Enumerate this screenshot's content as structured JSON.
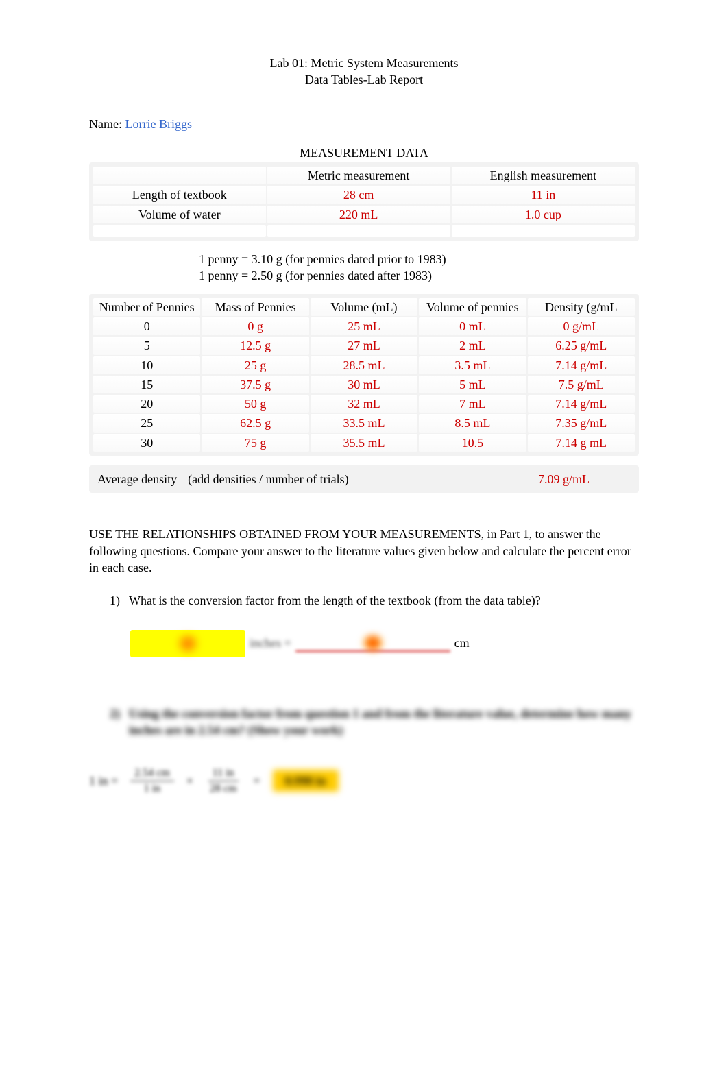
{
  "title": {
    "line1": "Lab 01:   Metric System Measurements",
    "line2": "Data Tables-Lab Report"
  },
  "name_label": "Name:",
  "name_value": "Lorrie Briggs",
  "measurement": {
    "heading": "MEASUREMENT DATA",
    "col_metric": "Metric measurement",
    "col_english": "English measurement",
    "rows": [
      {
        "label": "Length of textbook",
        "metric": "28 cm",
        "english": "11 in"
      },
      {
        "label": "Volume of water",
        "metric": "220 mL",
        "english": "1.0 cup"
      }
    ]
  },
  "penny_notes": {
    "l1": "1 penny = 3.10 g (for pennies dated prior to 1983)",
    "l2": "1 penny = 2.50 g (for pennies dated after 1983)"
  },
  "pennies": {
    "headers": [
      "Number of Pennies",
      "Mass of Pennies",
      "Volume (mL)",
      "Volume of pennies",
      "Density (g/mL"
    ],
    "rows": [
      [
        "0",
        "0 g",
        "25 mL",
        "0 mL",
        "0 g/mL"
      ],
      [
        "5",
        "12.5 g",
        "27 mL",
        "2 mL",
        "6.25 g/mL"
      ],
      [
        "10",
        "25 g",
        "28.5 mL",
        "3.5 mL",
        "7.14 g/mL"
      ],
      [
        "15",
        "37.5 g",
        "30 mL",
        "5 mL",
        "7.5 g/mL"
      ],
      [
        "20",
        "50 g",
        "32 mL",
        "7 mL",
        "7.14 g/mL"
      ],
      [
        "25",
        "62.5 g",
        "33.5 mL",
        "8.5 mL",
        "7.35 g/mL"
      ],
      [
        "30",
        "75 g",
        "35.5 mL",
        "10.5",
        "7.14 g mL"
      ]
    ]
  },
  "avg": {
    "label": "Average density",
    "formula": "(add densities / number of trials)",
    "value": "7.09 g/mL"
  },
  "para": {
    "p1a": "USE THE RELATIONSHIPS OBTAINED FROM YOUR MEASUREMENTS",
    "p1b": ", in Part 1, to answer the following questions. Compare your answer to the literature values given below and calculate the percent error in each case."
  },
  "q1": {
    "num": "1)",
    "text": "What is the conversion factor from the length of the textbook (from the data table)?",
    "unit": "cm",
    "mid": "inches ="
  },
  "q2": {
    "num": "2)",
    "text": "Using the conversion factor from question 1 and from the literature value, determine how many inches are in 2.54 cm?   (Show your work)"
  },
  "eq": {
    "lhs": "1 in =",
    "f1_top": "2.54 cm",
    "f1_bot": "1 in",
    "times": "×",
    "f2_top": "11 in",
    "f2_bot": "28 cm",
    "eq": "=",
    "ans": "0.998 in"
  },
  "colors": {
    "red": "#cc0000",
    "blue": "#3366cc",
    "highlight": "#ffff00",
    "table_bg": "#f2f2f2"
  }
}
